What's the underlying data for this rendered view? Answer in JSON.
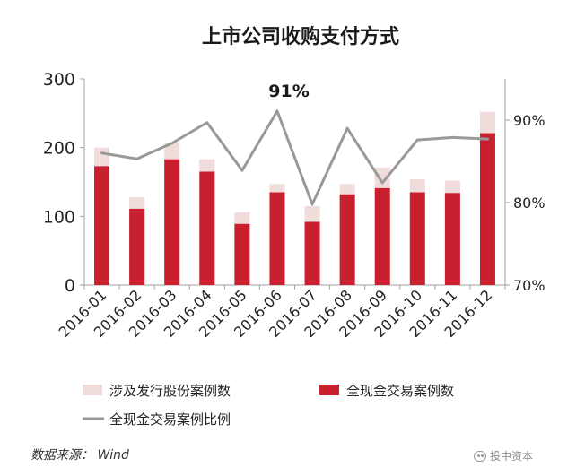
{
  "chart_data": {
    "type": "bar",
    "title": "上市公司收购支付方式",
    "annotation": "91%",
    "categories": [
      "2016-01",
      "2016-02",
      "2016-03",
      "2016-04",
      "2016-05",
      "2016-06",
      "2016-07",
      "2016-08",
      "2016-09",
      "2016-10",
      "2016-11",
      "2016-12"
    ],
    "series": [
      {
        "name": "涉及发行股份案例数",
        "type": "bar",
        "axis": "left",
        "values": [
          200,
          128,
          207,
          183,
          106,
          147,
          115,
          147,
          171,
          154,
          152,
          252
        ],
        "color": "#f1dcdc"
      },
      {
        "name": "全现金交易案例数",
        "type": "bar",
        "axis": "left",
        "values": [
          173,
          111,
          183,
          165,
          89,
          135,
          92,
          132,
          141,
          135,
          134,
          221
        ],
        "color": "#c8202f"
      },
      {
        "name": "全现金交易案例比例",
        "type": "line",
        "axis": "right",
        "values": [
          86,
          85.3,
          87.2,
          89.7,
          83.9,
          91.1,
          79.8,
          89,
          82.4,
          87.6,
          87.9,
          87.7
        ],
        "color": "#999999"
      }
    ],
    "yleft": {
      "ylim": [
        0,
        300
      ],
      "ticks": [
        "0",
        "100",
        "200",
        "300"
      ]
    },
    "yright": {
      "ylim": [
        70,
        95
      ],
      "ticks": [
        "70%",
        "80%",
        "90%"
      ]
    },
    "legend": {
      "placement": "bottom"
    },
    "grid": false
  },
  "footer": {
    "source": "数据来源： Wind",
    "watermark": "投中资本"
  }
}
